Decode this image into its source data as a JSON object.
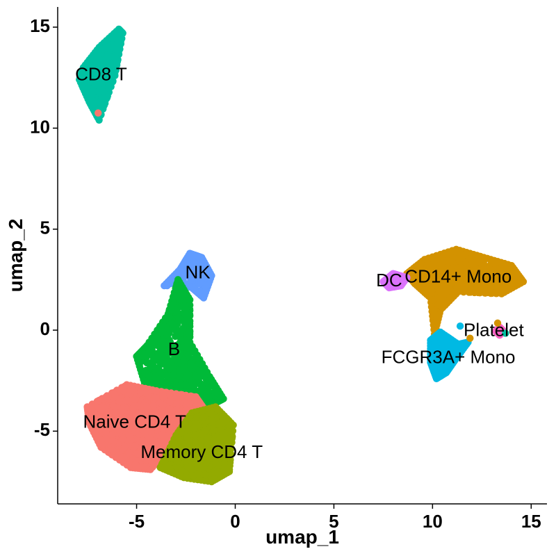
{
  "chart_data": {
    "type": "scatter",
    "title": "",
    "xlabel": "umap_1",
    "ylabel": "umap_2",
    "xlim": [
      -9,
      15.8
    ],
    "ylim": [
      -8.6,
      16
    ],
    "x_ticks": [
      -5,
      0,
      5,
      10,
      15
    ],
    "y_ticks": [
      -5,
      0,
      5,
      10,
      15
    ],
    "x_tick_labels": [
      "-5",
      "0",
      "5",
      "10",
      "15"
    ],
    "y_tick_labels": [
      "-5",
      "0",
      "5",
      "10",
      "15"
    ],
    "grid": false,
    "legend": "none",
    "point_color_seed": 7,
    "series": [
      {
        "name": "CD8 T",
        "color": "#00C1A2",
        "label_pos": [
          -6.8,
          12.6
        ],
        "polygon": [
          [
            -6.9,
            10.4
          ],
          [
            -6.1,
            12.6
          ],
          [
            -5.7,
            14.7
          ],
          [
            -5.9,
            14.9
          ],
          [
            -6.9,
            14.0
          ],
          [
            -7.7,
            13.0
          ],
          [
            -7.9,
            12.4
          ],
          [
            -7.4,
            11.3
          ]
        ],
        "n": 420
      },
      {
        "name": "NK",
        "color": "#619CFF",
        "label_pos": [
          -1.9,
          2.8
        ],
        "polygon": [
          [
            -3.6,
            2.2
          ],
          [
            -2.8,
            3.0
          ],
          [
            -2.3,
            3.8
          ],
          [
            -1.7,
            3.6
          ],
          [
            -1.2,
            2.7
          ],
          [
            -1.6,
            1.6
          ],
          [
            -2.2,
            2.1
          ],
          [
            -3.0,
            2.4
          ]
        ],
        "n": 120
      },
      {
        "name": "B",
        "color": "#00BA38",
        "label_pos": [
          -3.1,
          -1.0
        ],
        "polygon": [
          [
            -4.5,
            -0.8
          ],
          [
            -3.4,
            0.8
          ],
          [
            -2.9,
            2.5
          ],
          [
            -2.3,
            1.5
          ],
          [
            -2.3,
            -0.6
          ],
          [
            -1.3,
            -2.3
          ],
          [
            -0.6,
            -3.4
          ],
          [
            -1.2,
            -3.7
          ],
          [
            -2.6,
            -3.0
          ],
          [
            -4.6,
            -2.6
          ],
          [
            -5.0,
            -1.3
          ]
        ],
        "n": 520
      },
      {
        "name": "Naive CD4 T",
        "color": "#F8766D",
        "label_pos": [
          -5.1,
          -4.6
        ],
        "polygon": [
          [
            -7.5,
            -3.8
          ],
          [
            -5.5,
            -2.7
          ],
          [
            -4.0,
            -3.0
          ],
          [
            -2.0,
            -3.3
          ],
          [
            -1.5,
            -4.0
          ],
          [
            -3.0,
            -4.8
          ],
          [
            -3.5,
            -6.0
          ],
          [
            -4.3,
            -6.9
          ],
          [
            -5.3,
            -6.8
          ],
          [
            -6.8,
            -5.8
          ],
          [
            -7.4,
            -4.6
          ]
        ],
        "n": 1200
      },
      {
        "name": "Memory CD4 T",
        "color": "#93AA00",
        "label_pos": [
          -1.7,
          -6.1
        ],
        "polygon": [
          [
            -3.8,
            -6.8
          ],
          [
            -3.0,
            -5.2
          ],
          [
            -2.2,
            -4.1
          ],
          [
            -1.0,
            -3.8
          ],
          [
            -0.1,
            -4.7
          ],
          [
            -0.3,
            -7.0
          ],
          [
            -1.2,
            -7.5
          ],
          [
            -2.6,
            -7.3
          ]
        ],
        "n": 800
      },
      {
        "name": "CD14+ Mono",
        "color": "#D39200",
        "label_pos": [
          11.3,
          2.6
        ],
        "polygon": [
          [
            8.7,
            2.8
          ],
          [
            9.6,
            3.5
          ],
          [
            11.2,
            4.0
          ],
          [
            12.6,
            3.6
          ],
          [
            14.0,
            3.2
          ],
          [
            14.6,
            2.4
          ],
          [
            13.5,
            1.8
          ],
          [
            11.3,
            1.9
          ],
          [
            10.4,
            1.0
          ],
          [
            10.1,
            -0.2
          ],
          [
            9.9,
            1.6
          ],
          [
            9.1,
            2.3
          ]
        ],
        "n": 680
      },
      {
        "name": "DC",
        "color": "#DB72FB",
        "label_pos": [
          7.8,
          2.4
        ],
        "polygon": [
          [
            7.5,
            2.4
          ],
          [
            8.0,
            2.8
          ],
          [
            8.7,
            2.6
          ],
          [
            8.4,
            2.2
          ],
          [
            7.8,
            2.1
          ]
        ],
        "n": 30
      },
      {
        "name": "FCGR3A+ Mono",
        "color": "#00B9E3",
        "label_pos": [
          10.8,
          -1.4
        ],
        "polygon": [
          [
            9.9,
            -0.5
          ],
          [
            10.4,
            -0.1
          ],
          [
            11.3,
            -0.7
          ],
          [
            11.8,
            -0.6
          ],
          [
            11.2,
            -1.4
          ],
          [
            10.7,
            -2.1
          ],
          [
            10.2,
            -2.4
          ],
          [
            9.9,
            -1.6
          ]
        ],
        "n": 260
      },
      {
        "name": "Platelet",
        "color": "#FF61C3",
        "label_pos": [
          13.1,
          -0.05
        ],
        "polygon": [
          [
            13.2,
            -0.05
          ],
          [
            13.4,
            0.15
          ],
          [
            13.6,
            -0.05
          ],
          [
            13.4,
            -0.25
          ]
        ],
        "n": 10
      }
    ],
    "extra_points": [
      {
        "color": "#F8766D",
        "x": -6.95,
        "y": 10.75
      },
      {
        "color": "#D39200",
        "x": 11.9,
        "y": -0.4
      },
      {
        "color": "#00C1A2",
        "x": 13.7,
        "y": -0.15
      },
      {
        "color": "#00B9E3",
        "x": 11.4,
        "y": 0.2
      },
      {
        "color": "#D39200",
        "x": 13.3,
        "y": 0.35
      },
      {
        "color": "#619CFF",
        "x": -3.45,
        "y": 2.2
      }
    ]
  }
}
